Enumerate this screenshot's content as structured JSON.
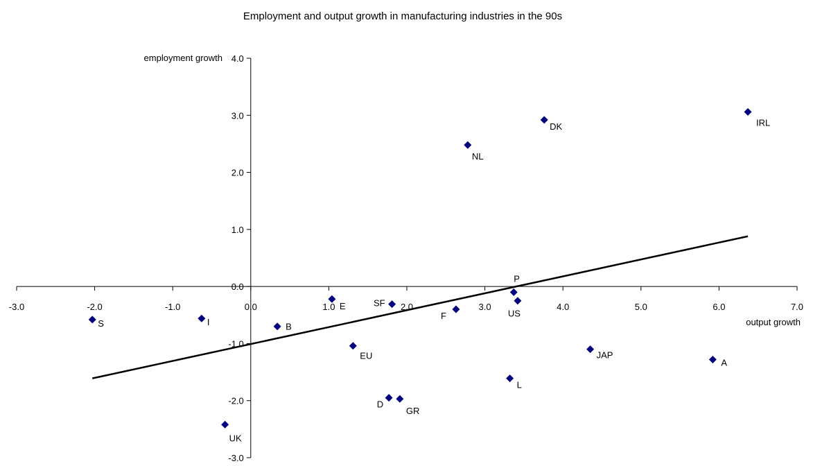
{
  "chart_data": {
    "type": "scatter",
    "title": "Employment and output growth in manufacturing industries in the 90s",
    "xlabel": "output growth",
    "ylabel": "employment growth",
    "xlim": [
      -3.0,
      7.0
    ],
    "ylim": [
      -3.0,
      4.0
    ],
    "x_ticks": [
      "-3.0",
      "-2.0",
      "-1.0",
      "0.0",
      "1.0",
      "2.0",
      "3.0",
      "4.0",
      "5.0",
      "6.0",
      "7.0"
    ],
    "y_ticks": [
      "4.0",
      "3.0",
      "2.0",
      "1.0",
      "0.0",
      "-1.0",
      "-2.0",
      "-3.0"
    ],
    "grid": false,
    "legend": "none",
    "marker": "diamond",
    "marker_color": "#00007F",
    "points": [
      {
        "label": "S",
        "x": -2.03,
        "y": -0.58
      },
      {
        "label": "I",
        "x": -0.63,
        "y": -0.56
      },
      {
        "label": "UK",
        "x": -0.33,
        "y": -2.42
      },
      {
        "label": "B",
        "x": 0.34,
        "y": -0.7
      },
      {
        "label": "E",
        "x": 1.04,
        "y": -0.22
      },
      {
        "label": "EU",
        "x": 1.31,
        "y": -1.04
      },
      {
        "label": "SF",
        "x": 1.81,
        "y": -0.31
      },
      {
        "label": "D",
        "x": 1.77,
        "y": -1.95
      },
      {
        "label": "GR",
        "x": 1.91,
        "y": -1.97
      },
      {
        "label": "F",
        "x": 2.63,
        "y": -0.4
      },
      {
        "label": "NL",
        "x": 2.78,
        "y": 2.48
      },
      {
        "label": "L",
        "x": 3.32,
        "y": -1.61
      },
      {
        "label": "P",
        "x": 3.37,
        "y": -0.1
      },
      {
        "label": "US",
        "x": 3.42,
        "y": -0.25
      },
      {
        "label": "DK",
        "x": 3.76,
        "y": 2.92
      },
      {
        "label": "JAP",
        "x": 4.35,
        "y": -1.1
      },
      {
        "label": "A",
        "x": 5.92,
        "y": -1.28
      },
      {
        "label": "IRL",
        "x": 6.37,
        "y": 3.06
      }
    ],
    "trendline": {
      "x": [
        -2.03,
        6.37
      ],
      "y": [
        -1.61,
        0.88
      ],
      "color": "#000000"
    }
  }
}
